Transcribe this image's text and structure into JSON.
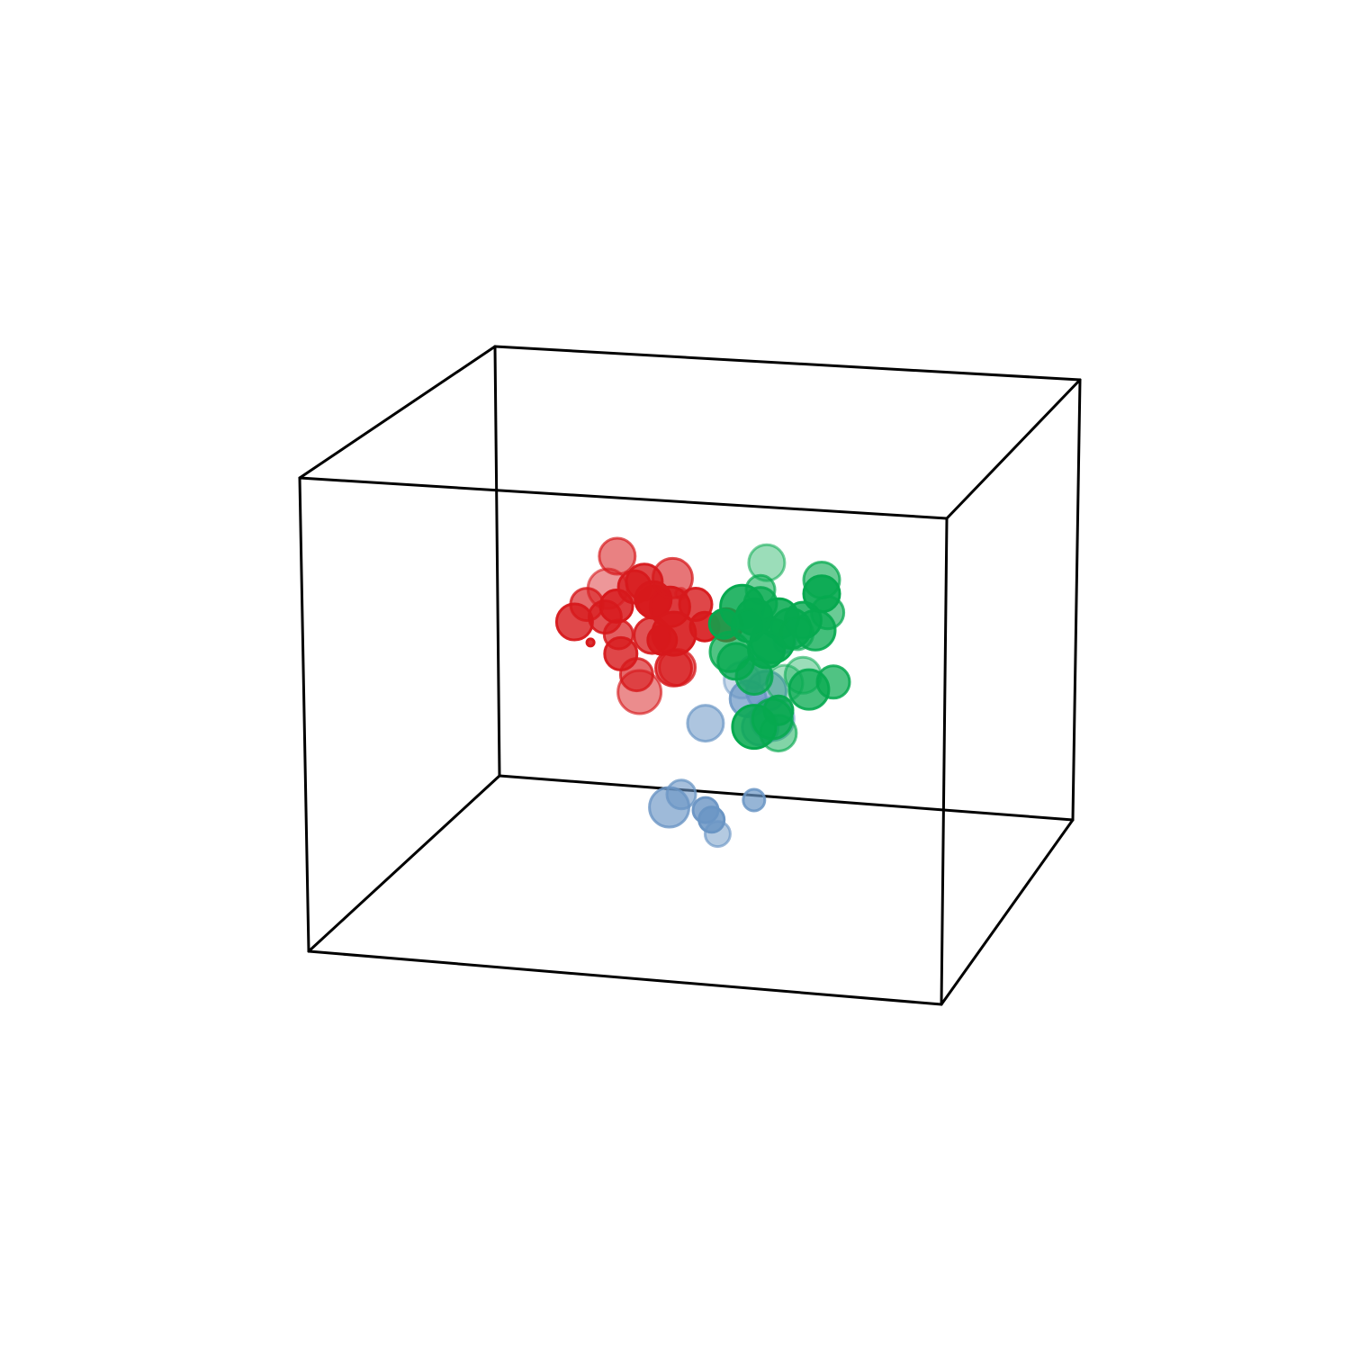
{
  "chart_data": {
    "type": "scatter",
    "projection": "3d",
    "title": "",
    "xlabel": "",
    "ylabel": "",
    "zlabel": "",
    "xlim": [
      0,
      1
    ],
    "ylim": [
      0,
      1
    ],
    "zlim": [
      0,
      1
    ],
    "axes_visible": false,
    "grid": false,
    "legend": "none",
    "series": [
      {
        "color": "#d7191c",
        "points": [
          {
            "x": 0.37,
            "y": 0.45,
            "z": 0.73,
            "s": 1.0,
            "a": 0.55
          },
          {
            "x": 0.32,
            "y": 0.45,
            "z": 0.62,
            "s": 0.9,
            "a": 0.65
          },
          {
            "x": 0.34,
            "y": 0.5,
            "z": 0.64,
            "s": 1.1,
            "a": 0.45
          },
          {
            "x": 0.46,
            "y": 0.45,
            "z": 0.69,
            "s": 1.1,
            "a": 0.6
          },
          {
            "x": 0.4,
            "y": 0.5,
            "z": 0.66,
            "s": 1.0,
            "a": 0.8
          },
          {
            "x": 0.42,
            "y": 0.48,
            "z": 0.63,
            "s": 1.0,
            "a": 0.9
          },
          {
            "x": 0.45,
            "y": 0.47,
            "z": 0.62,
            "s": 1.1,
            "a": 0.85
          },
          {
            "x": 0.36,
            "y": 0.48,
            "z": 0.61,
            "s": 0.9,
            "a": 0.85
          },
          {
            "x": 0.44,
            "y": 0.4,
            "z": 0.58,
            "s": 1.0,
            "a": 0.75
          },
          {
            "x": 0.47,
            "y": 0.42,
            "z": 0.58,
            "s": 1.2,
            "a": 0.9
          },
          {
            "x": 0.38,
            "y": 0.42,
            "z": 0.57,
            "s": 0.8,
            "a": 0.7
          },
          {
            "x": 0.4,
            "y": 0.36,
            "z": 0.55,
            "s": 0.9,
            "a": 0.8
          },
          {
            "x": 0.44,
            "y": 0.46,
            "z": 0.55,
            "s": 0.8,
            "a": 0.9
          },
          {
            "x": 0.5,
            "y": 0.44,
            "z": 0.64,
            "s": 0.9,
            "a": 0.8
          },
          {
            "x": 0.52,
            "y": 0.42,
            "z": 0.6,
            "s": 0.8,
            "a": 0.9
          },
          {
            "x": 0.48,
            "y": 0.38,
            "z": 0.52,
            "s": 1.0,
            "a": 0.7
          },
          {
            "x": 0.42,
            "y": 0.38,
            "z": 0.5,
            "s": 0.9,
            "a": 0.65
          },
          {
            "x": 0.43,
            "y": 0.36,
            "z": 0.47,
            "s": 1.2,
            "a": 0.5
          },
          {
            "x": 0.3,
            "y": 0.45,
            "z": 0.58,
            "s": 1.0,
            "a": 0.8
          },
          {
            "x": 0.33,
            "y": 0.52,
            "z": 0.57,
            "s": 0.9,
            "a": 0.75
          },
          {
            "x": 0.47,
            "y": 0.44,
            "z": 0.5,
            "s": 1.0,
            "a": 0.6
          },
          {
            "x": 0.46,
            "y": 0.5,
            "z": 0.64,
            "s": 0.3,
            "a": 0.4
          },
          {
            "x": 0.32,
            "y": 0.47,
            "z": 0.53,
            "s": 0.2,
            "a": 0.9
          },
          {
            "x": 0.55,
            "y": 0.44,
            "z": 0.6,
            "s": 0.9,
            "a": 0.85
          },
          {
            "x": 0.37,
            "y": 0.55,
            "z": 0.63,
            "s": 0.9,
            "a": 0.8
          },
          {
            "x": 0.41,
            "y": 0.52,
            "z": 0.61,
            "s": 0.9,
            "a": 0.85
          }
        ]
      },
      {
        "color": "#6a95c4",
        "points": [
          {
            "x": 0.5,
            "y": 0.5,
            "z": 0.36,
            "s": 1.0,
            "a": 0.55
          },
          {
            "x": 0.46,
            "y": 0.5,
            "z": 0.2,
            "s": 0.8,
            "a": 0.6
          },
          {
            "x": 0.44,
            "y": 0.5,
            "z": 0.17,
            "s": 1.1,
            "a": 0.65
          },
          {
            "x": 0.5,
            "y": 0.5,
            "z": 0.17,
            "s": 0.7,
            "a": 0.8
          },
          {
            "x": 0.51,
            "y": 0.5,
            "z": 0.15,
            "s": 0.7,
            "a": 0.85
          },
          {
            "x": 0.52,
            "y": 0.5,
            "z": 0.12,
            "s": 0.7,
            "a": 0.5
          },
          {
            "x": 0.58,
            "y": 0.5,
            "z": 0.2,
            "s": 0.6,
            "a": 0.7
          },
          {
            "x": 0.57,
            "y": 0.5,
            "z": 0.42,
            "s": 1.0,
            "a": 0.7
          },
          {
            "x": 0.56,
            "y": 0.5,
            "z": 0.46,
            "s": 1.0,
            "a": 0.35
          },
          {
            "x": 0.6,
            "y": 0.5,
            "z": 0.44,
            "s": 1.1,
            "a": 0.6
          },
          {
            "x": 0.59,
            "y": 0.5,
            "z": 0.36,
            "s": 1.0,
            "a": 0.6
          },
          {
            "x": 0.61,
            "y": 0.5,
            "z": 0.38,
            "s": 1.2,
            "a": 0.45
          },
          {
            "x": 0.58,
            "y": 0.5,
            "z": 0.48,
            "s": 0.9,
            "a": 0.55
          },
          {
            "x": 0.63,
            "y": 0.5,
            "z": 0.55,
            "s": 0.6,
            "a": 0.6
          }
        ]
      },
      {
        "color": "#06a94f",
        "points": [
          {
            "x": 0.6,
            "y": 0.5,
            "z": 0.72,
            "s": 1.0,
            "a": 0.4
          },
          {
            "x": 0.59,
            "y": 0.5,
            "z": 0.66,
            "s": 0.8,
            "a": 0.55
          },
          {
            "x": 0.59,
            "y": 0.5,
            "z": 0.63,
            "s": 0.9,
            "a": 0.7
          },
          {
            "x": 0.58,
            "y": 0.5,
            "z": 0.6,
            "s": 1.0,
            "a": 0.9
          },
          {
            "x": 0.56,
            "y": 0.5,
            "z": 0.62,
            "s": 1.2,
            "a": 0.85
          },
          {
            "x": 0.62,
            "y": 0.5,
            "z": 0.6,
            "s": 1.1,
            "a": 0.85
          },
          {
            "x": 0.64,
            "y": 0.5,
            "z": 0.58,
            "s": 1.1,
            "a": 0.8
          },
          {
            "x": 0.66,
            "y": 0.5,
            "z": 0.6,
            "s": 1.0,
            "a": 0.8
          },
          {
            "x": 0.61,
            "y": 0.5,
            "z": 0.55,
            "s": 1.2,
            "a": 0.85
          },
          {
            "x": 0.54,
            "y": 0.5,
            "z": 0.52,
            "s": 1.1,
            "a": 0.7
          },
          {
            "x": 0.55,
            "y": 0.5,
            "z": 0.5,
            "s": 1.0,
            "a": 0.75
          },
          {
            "x": 0.58,
            "y": 0.5,
            "z": 0.47,
            "s": 1.0,
            "a": 0.7
          },
          {
            "x": 0.69,
            "y": 0.5,
            "z": 0.69,
            "s": 1.0,
            "a": 0.6
          },
          {
            "x": 0.69,
            "y": 0.5,
            "z": 0.66,
            "s": 1.0,
            "a": 0.9
          },
          {
            "x": 0.7,
            "y": 0.5,
            "z": 0.62,
            "s": 0.9,
            "a": 0.6
          },
          {
            "x": 0.68,
            "y": 0.5,
            "z": 0.58,
            "s": 1.1,
            "a": 0.75
          },
          {
            "x": 0.66,
            "y": 0.5,
            "z": 0.48,
            "s": 1.0,
            "a": 0.4
          },
          {
            "x": 0.67,
            "y": 0.5,
            "z": 0.45,
            "s": 1.1,
            "a": 0.75
          },
          {
            "x": 0.71,
            "y": 0.5,
            "z": 0.47,
            "s": 0.9,
            "a": 0.7
          },
          {
            "x": 0.63,
            "y": 0.5,
            "z": 0.46,
            "s": 1.0,
            "a": 0.35
          },
          {
            "x": 0.58,
            "y": 0.5,
            "z": 0.36,
            "s": 1.2,
            "a": 0.85
          },
          {
            "x": 0.62,
            "y": 0.5,
            "z": 0.35,
            "s": 1.0,
            "a": 0.5
          },
          {
            "x": 0.61,
            "y": 0.5,
            "z": 0.38,
            "s": 1.1,
            "a": 0.7
          },
          {
            "x": 0.62,
            "y": 0.5,
            "z": 0.4,
            "s": 0.8,
            "a": 0.8
          },
          {
            "x": 0.65,
            "y": 0.5,
            "z": 0.57,
            "s": 0.9,
            "a": 0.5
          },
          {
            "x": 0.57,
            "y": 0.5,
            "z": 0.58,
            "s": 0.9,
            "a": 0.9
          },
          {
            "x": 0.6,
            "y": 0.5,
            "z": 0.53,
            "s": 1.0,
            "a": 0.9
          },
          {
            "x": 0.53,
            "y": 0.5,
            "z": 0.58,
            "s": 0.8,
            "a": 0.85
          }
        ]
      }
    ]
  }
}
